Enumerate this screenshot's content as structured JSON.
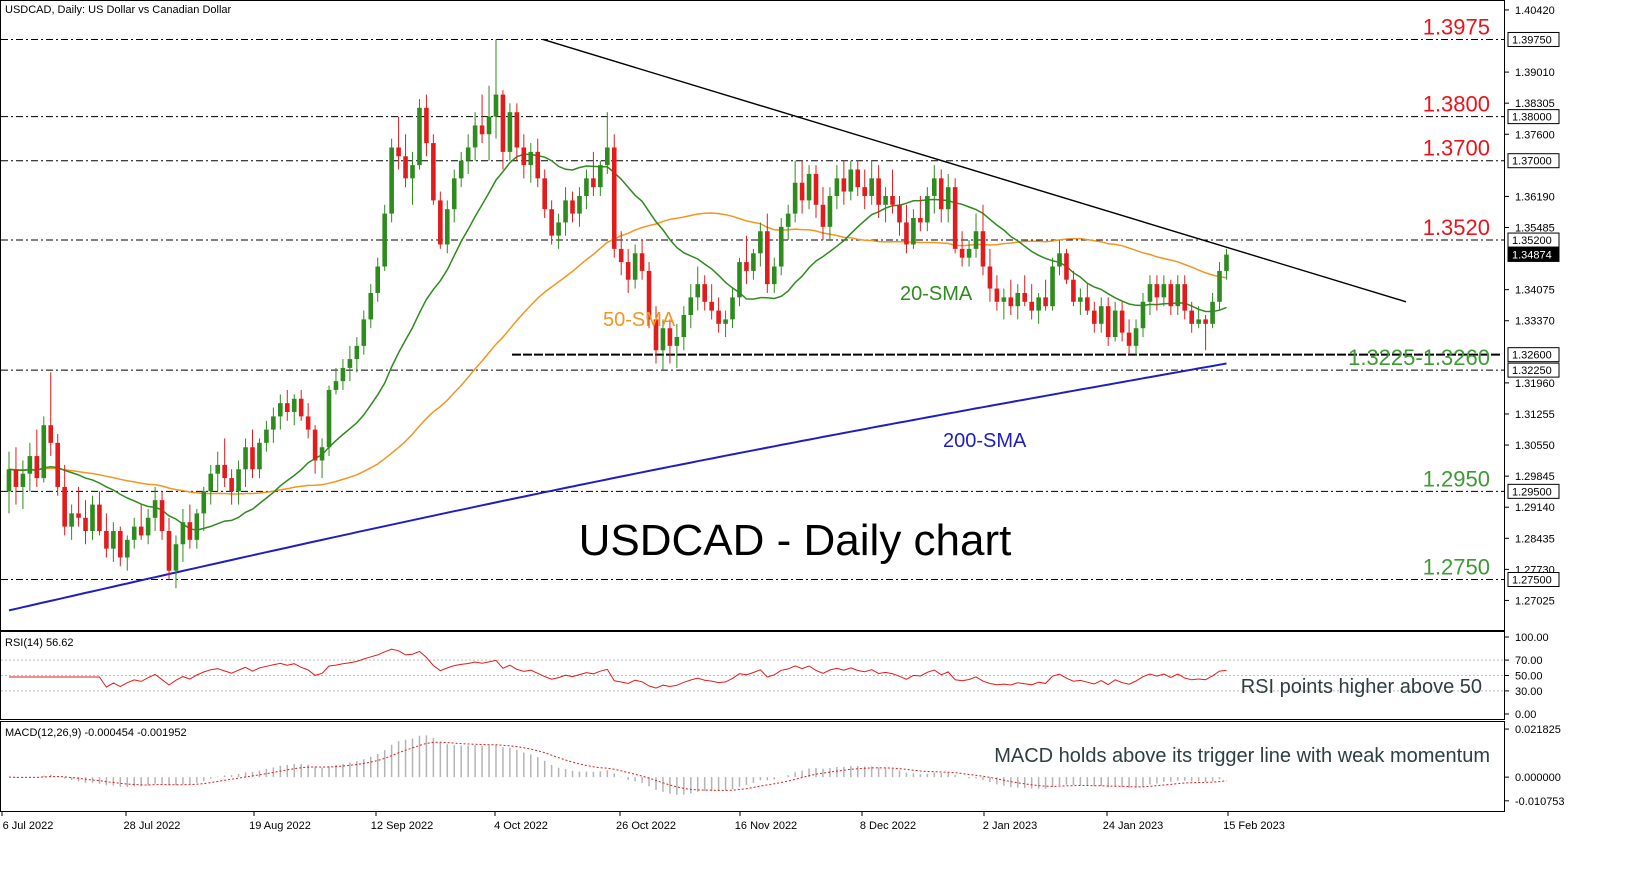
{
  "chart_data": {
    "type": "candlestick",
    "header": "USDCAD, Daily:  US Dollar vs Canadian Dollar",
    "title": "USDCAD - Daily chart",
    "ylim": [
      1.264,
      1.406
    ],
    "x_ticks": [
      "6 Jul 2022",
      "28 Jul 2022",
      "19 Aug 2022",
      "12 Sep 2022",
      "4 Oct 2022",
      "26 Oct 2022",
      "16 Nov 2022",
      "8 Dec 2022",
      "2 Jan 2023",
      "24 Jan 2023",
      "15 Feb 2023"
    ],
    "y_ticks": [
      "1.40420",
      "1.39010",
      "1.38305",
      "1.37600",
      "1.36190",
      "1.35485",
      "1.34075",
      "1.33370",
      "1.31960",
      "1.31255",
      "1.30550",
      "1.29845",
      "1.29140",
      "1.28435",
      "1.27730",
      "1.27025"
    ],
    "price_markers": [
      {
        "label": "1.39750",
        "value": 1.3975,
        "bg": "#ffffff",
        "fg": "#000000"
      },
      {
        "label": "1.38000",
        "value": 1.38,
        "bg": "#ffffff",
        "fg": "#000000"
      },
      {
        "label": "1.37000",
        "value": 1.37,
        "bg": "#ffffff",
        "fg": "#000000"
      },
      {
        "label": "1.35200",
        "value": 1.352,
        "bg": "#ffffff",
        "fg": "#000000"
      },
      {
        "label": "1.34874",
        "value": 1.34874,
        "bg": "#000000",
        "fg": "#ffffff"
      },
      {
        "label": "1.32600",
        "value": 1.326,
        "bg": "#ffffff",
        "fg": "#000000"
      },
      {
        "label": "1.32250",
        "value": 1.3225,
        "bg": "#ffffff",
        "fg": "#000000"
      },
      {
        "label": "1.29500",
        "value": 1.295,
        "bg": "#ffffff",
        "fg": "#000000"
      },
      {
        "label": "1.27500",
        "value": 1.275,
        "bg": "#ffffff",
        "fg": "#000000"
      }
    ],
    "levels": [
      {
        "label": "1.3975",
        "value": 1.3975,
        "color": "#e8141c"
      },
      {
        "label": "1.3800",
        "value": 1.38,
        "color": "#e8141c"
      },
      {
        "label": "1.3700",
        "value": 1.37,
        "color": "#e8141c"
      },
      {
        "label": "1.3520",
        "value": 1.352,
        "color": "#e8141c"
      },
      {
        "label": "1.3225-1.3260",
        "value": 1.3225,
        "color": "#3e9a34"
      },
      {
        "label": "1.2950",
        "value": 1.295,
        "color": "#3e9a34"
      },
      {
        "label": "1.2750",
        "value": 1.275,
        "color": "#3e9a34"
      }
    ],
    "support_line": 1.326,
    "trendline": {
      "from": [
        "4 Oct 2022",
        1.3975
      ],
      "to": [
        "mid Mar 2023",
        1.338
      ]
    },
    "ma_labels": {
      "sma20": "20-SMA",
      "sma50": "50-SMA",
      "sma200": "200-SMA"
    },
    "colors": {
      "up": "#2e8b1e",
      "down": "#e21c1c",
      "sma20": "#2e8b1e",
      "sma50": "#f39521",
      "sma200": "#1f1fc0",
      "rsi": "#e21c1c",
      "macd_signal": "#e21c1c",
      "macd_hist": "#b4b4b4"
    },
    "candles": [
      [
        1.295,
        1.304,
        1.29,
        1.3
      ],
      [
        1.3,
        1.305,
        1.292,
        1.296
      ],
      [
        1.296,
        1.302,
        1.291,
        1.299
      ],
      [
        1.299,
        1.306,
        1.295,
        1.303
      ],
      [
        1.303,
        1.309,
        1.296,
        1.298
      ],
      [
        1.298,
        1.312,
        1.297,
        1.31
      ],
      [
        1.31,
        1.322,
        1.303,
        1.306
      ],
      [
        1.306,
        1.308,
        1.294,
        1.296
      ],
      [
        1.296,
        1.301,
        1.285,
        1.287
      ],
      [
        1.287,
        1.292,
        1.284,
        1.29
      ],
      [
        1.29,
        1.296,
        1.287,
        1.289
      ],
      [
        1.289,
        1.293,
        1.283,
        1.286
      ],
      [
        1.286,
        1.294,
        1.284,
        1.292
      ],
      [
        1.292,
        1.295,
        1.285,
        1.286
      ],
      [
        1.286,
        1.29,
        1.28,
        1.282
      ],
      [
        1.282,
        1.288,
        1.279,
        1.286
      ],
      [
        1.286,
        1.287,
        1.278,
        1.28
      ],
      [
        1.28,
        1.285,
        1.277,
        1.284
      ],
      [
        1.284,
        1.289,
        1.282,
        1.287
      ],
      [
        1.287,
        1.292,
        1.284,
        1.285
      ],
      [
        1.285,
        1.291,
        1.283,
        1.289
      ],
      [
        1.289,
        1.296,
        1.286,
        1.293
      ],
      [
        1.293,
        1.295,
        1.284,
        1.286
      ],
      [
        1.286,
        1.289,
        1.275,
        1.277
      ],
      [
        1.277,
        1.285,
        1.273,
        1.283
      ],
      [
        1.283,
        1.291,
        1.279,
        1.288
      ],
      [
        1.288,
        1.292,
        1.282,
        1.284
      ],
      [
        1.284,
        1.291,
        1.282,
        1.29
      ],
      [
        1.29,
        1.296,
        1.286,
        1.295
      ],
      [
        1.295,
        1.301,
        1.292,
        1.299
      ],
      [
        1.299,
        1.304,
        1.295,
        1.301
      ],
      [
        1.301,
        1.307,
        1.296,
        1.298
      ],
      [
        1.298,
        1.3,
        1.292,
        1.295
      ],
      [
        1.295,
        1.302,
        1.292,
        1.3
      ],
      [
        1.3,
        1.307,
        1.296,
        1.305
      ],
      [
        1.305,
        1.309,
        1.298,
        1.3
      ],
      [
        1.3,
        1.307,
        1.298,
        1.306
      ],
      [
        1.306,
        1.311,
        1.304,
        1.309
      ],
      [
        1.309,
        1.314,
        1.306,
        1.312
      ],
      [
        1.312,
        1.317,
        1.309,
        1.315
      ],
      [
        1.315,
        1.318,
        1.311,
        1.313
      ],
      [
        1.313,
        1.317,
        1.31,
        1.316
      ],
      [
        1.316,
        1.318,
        1.311,
        1.312
      ],
      [
        1.312,
        1.315,
        1.307,
        1.309
      ],
      [
        1.309,
        1.31,
        1.299,
        1.302
      ],
      [
        1.302,
        1.307,
        1.298,
        1.305
      ],
      [
        1.305,
        1.319,
        1.303,
        1.318
      ],
      [
        1.318,
        1.323,
        1.317,
        1.32
      ],
      [
        1.32,
        1.325,
        1.318,
        1.323
      ],
      [
        1.323,
        1.328,
        1.32,
        1.325
      ],
      [
        1.325,
        1.33,
        1.322,
        1.328
      ],
      [
        1.328,
        1.336,
        1.326,
        1.334
      ],
      [
        1.334,
        1.342,
        1.332,
        1.34
      ],
      [
        1.34,
        1.348,
        1.338,
        1.346
      ],
      [
        1.346,
        1.36,
        1.345,
        1.358
      ],
      [
        1.358,
        1.375,
        1.356,
        1.373
      ],
      [
        1.373,
        1.38,
        1.368,
        1.371
      ],
      [
        1.371,
        1.376,
        1.364,
        1.366
      ],
      [
        1.366,
        1.372,
        1.36,
        1.369
      ],
      [
        1.369,
        1.384,
        1.368,
        1.382
      ],
      [
        1.382,
        1.385,
        1.371,
        1.374
      ],
      [
        1.374,
        1.376,
        1.36,
        1.361
      ],
      [
        1.361,
        1.363,
        1.35,
        1.351
      ],
      [
        1.351,
        1.361,
        1.349,
        1.359
      ],
      [
        1.359,
        1.368,
        1.356,
        1.366
      ],
      [
        1.366,
        1.372,
        1.364,
        1.37
      ],
      [
        1.37,
        1.376,
        1.367,
        1.373
      ],
      [
        1.373,
        1.381,
        1.37,
        1.378
      ],
      [
        1.378,
        1.385,
        1.374,
        1.376
      ],
      [
        1.376,
        1.387,
        1.37,
        1.38
      ],
      [
        1.38,
        1.3975,
        1.375,
        1.385
      ],
      [
        1.385,
        1.386,
        1.368,
        1.372
      ],
      [
        1.372,
        1.383,
        1.37,
        1.381
      ],
      [
        1.381,
        1.383,
        1.37,
        1.373
      ],
      [
        1.373,
        1.376,
        1.366,
        1.369
      ],
      [
        1.369,
        1.374,
        1.365,
        1.372
      ],
      [
        1.372,
        1.375,
        1.364,
        1.366
      ],
      [
        1.366,
        1.368,
        1.357,
        1.359
      ],
      [
        1.359,
        1.361,
        1.351,
        1.353
      ],
      [
        1.353,
        1.358,
        1.35,
        1.356
      ],
      [
        1.356,
        1.364,
        1.353,
        1.361
      ],
      [
        1.361,
        1.363,
        1.356,
        1.358
      ],
      [
        1.358,
        1.364,
        1.355,
        1.362
      ],
      [
        1.362,
        1.368,
        1.359,
        1.366
      ],
      [
        1.366,
        1.372,
        1.362,
        1.364
      ],
      [
        1.364,
        1.37,
        1.362,
        1.369
      ],
      [
        1.369,
        1.381,
        1.367,
        1.373
      ],
      [
        1.373,
        1.376,
        1.348,
        1.35
      ],
      [
        1.35,
        1.354,
        1.344,
        1.347
      ],
      [
        1.347,
        1.35,
        1.34,
        1.343
      ],
      [
        1.343,
        1.351,
        1.341,
        1.349
      ],
      [
        1.349,
        1.352,
        1.343,
        1.345
      ],
      [
        1.345,
        1.347,
        1.332,
        1.334
      ],
      [
        1.334,
        1.337,
        1.324,
        1.327
      ],
      [
        1.327,
        1.334,
        1.3225,
        1.332
      ],
      [
        1.332,
        1.334,
        1.324,
        1.328
      ],
      [
        1.328,
        1.333,
        1.323,
        1.33
      ],
      [
        1.33,
        1.337,
        1.327,
        1.335
      ],
      [
        1.335,
        1.342,
        1.332,
        1.339
      ],
      [
        1.339,
        1.346,
        1.336,
        1.342
      ],
      [
        1.342,
        1.344,
        1.336,
        1.338
      ],
      [
        1.338,
        1.342,
        1.334,
        1.336
      ],
      [
        1.336,
        1.339,
        1.331,
        1.333
      ],
      [
        1.333,
        1.336,
        1.33,
        1.334
      ],
      [
        1.334,
        1.341,
        1.332,
        1.339
      ],
      [
        1.339,
        1.348,
        1.337,
        1.347
      ],
      [
        1.347,
        1.353,
        1.342,
        1.345
      ],
      [
        1.345,
        1.35,
        1.343,
        1.349
      ],
      [
        1.349,
        1.356,
        1.346,
        1.354
      ],
      [
        1.354,
        1.358,
        1.34,
        1.342
      ],
      [
        1.342,
        1.348,
        1.34,
        1.346
      ],
      [
        1.346,
        1.357,
        1.344,
        1.355
      ],
      [
        1.355,
        1.36,
        1.352,
        1.358
      ],
      [
        1.358,
        1.37,
        1.356,
        1.365
      ],
      [
        1.365,
        1.37,
        1.358,
        1.361
      ],
      [
        1.361,
        1.369,
        1.359,
        1.367
      ],
      [
        1.367,
        1.369,
        1.357,
        1.36
      ],
      [
        1.36,
        1.364,
        1.352,
        1.355
      ],
      [
        1.355,
        1.364,
        1.352,
        1.362
      ],
      [
        1.362,
        1.369,
        1.359,
        1.366
      ],
      [
        1.366,
        1.37,
        1.36,
        1.363
      ],
      [
        1.363,
        1.37,
        1.361,
        1.368
      ],
      [
        1.368,
        1.37,
        1.362,
        1.364
      ],
      [
        1.364,
        1.368,
        1.359,
        1.362
      ],
      [
        1.362,
        1.37,
        1.36,
        1.366
      ],
      [
        1.366,
        1.369,
        1.357,
        1.36
      ],
      [
        1.36,
        1.364,
        1.356,
        1.362
      ],
      [
        1.362,
        1.368,
        1.358,
        1.36
      ],
      [
        1.36,
        1.362,
        1.353,
        1.356
      ],
      [
        1.356,
        1.36,
        1.349,
        1.351
      ],
      [
        1.351,
        1.359,
        1.35,
        1.357
      ],
      [
        1.357,
        1.362,
        1.354,
        1.356
      ],
      [
        1.356,
        1.364,
        1.354,
        1.362
      ],
      [
        1.362,
        1.369,
        1.358,
        1.366
      ],
      [
        1.366,
        1.368,
        1.356,
        1.359
      ],
      [
        1.359,
        1.367,
        1.356,
        1.364
      ],
      [
        1.364,
        1.366,
        1.349,
        1.35
      ],
      [
        1.35,
        1.354,
        1.346,
        1.348
      ],
      [
        1.348,
        1.352,
        1.346,
        1.35
      ],
      [
        1.35,
        1.358,
        1.348,
        1.354
      ],
      [
        1.354,
        1.36,
        1.344,
        1.346
      ],
      [
        1.346,
        1.35,
        1.338,
        1.341
      ],
      [
        1.341,
        1.344,
        1.336,
        1.338
      ],
      [
        1.338,
        1.341,
        1.334,
        1.339
      ],
      [
        1.339,
        1.343,
        1.335,
        1.337
      ],
      [
        1.337,
        1.342,
        1.334,
        1.34
      ],
      [
        1.34,
        1.344,
        1.337,
        1.338
      ],
      [
        1.338,
        1.342,
        1.334,
        1.336
      ],
      [
        1.336,
        1.34,
        1.333,
        1.339
      ],
      [
        1.339,
        1.343,
        1.336,
        1.337
      ],
      [
        1.337,
        1.348,
        1.336,
        1.346
      ],
      [
        1.346,
        1.352,
        1.344,
        1.349
      ],
      [
        1.349,
        1.35,
        1.342,
        1.343
      ],
      [
        1.343,
        1.345,
        1.337,
        1.338
      ],
      [
        1.338,
        1.341,
        1.335,
        1.339
      ],
      [
        1.339,
        1.342,
        1.335,
        1.336
      ],
      [
        1.336,
        1.338,
        1.331,
        1.333
      ],
      [
        1.333,
        1.339,
        1.331,
        1.337
      ],
      [
        1.337,
        1.339,
        1.328,
        1.33
      ],
      [
        1.33,
        1.338,
        1.329,
        1.336
      ],
      [
        1.336,
        1.338,
        1.329,
        1.331
      ],
      [
        1.331,
        1.334,
        1.326,
        1.328
      ],
      [
        1.328,
        1.334,
        1.326,
        1.332
      ],
      [
        1.332,
        1.34,
        1.33,
        1.338
      ],
      [
        1.338,
        1.344,
        1.335,
        1.342
      ],
      [
        1.342,
        1.344,
        1.336,
        1.339
      ],
      [
        1.339,
        1.344,
        1.337,
        1.342
      ],
      [
        1.342,
        1.343,
        1.335,
        1.337
      ],
      [
        1.337,
        1.344,
        1.335,
        1.342
      ],
      [
        1.342,
        1.344,
        1.334,
        1.336
      ],
      [
        1.336,
        1.338,
        1.331,
        1.333
      ],
      [
        1.333,
        1.337,
        1.332,
        1.334
      ],
      [
        1.334,
        1.335,
        1.327,
        1.333
      ],
      [
        1.333,
        1.34,
        1.332,
        1.338
      ],
      [
        1.338,
        1.347,
        1.336,
        1.345
      ],
      [
        1.345,
        1.35,
        1.343,
        1.3487
      ]
    ],
    "rsi": {
      "label": "RSI(14) 56.62",
      "ylim": [
        0,
        100
      ],
      "ticks": [
        "100.00",
        "70.00",
        "50.00",
        "30.00",
        "0.00"
      ],
      "tick_values": [
        100,
        70,
        50,
        30,
        0
      ],
      "annotation": "RSI points higher above 50"
    },
    "macd": {
      "label": "MACD(12,26,9) -0.000454 -0.001952",
      "ylim": [
        -0.0122,
        0.0223
      ],
      "ticks": [
        "0.021825",
        "0.000000",
        "-0.010753"
      ],
      "tick_values": [
        0.021825,
        0.0,
        -0.010753
      ],
      "annotation": "MACD holds above its trigger line with weak momentum"
    }
  }
}
